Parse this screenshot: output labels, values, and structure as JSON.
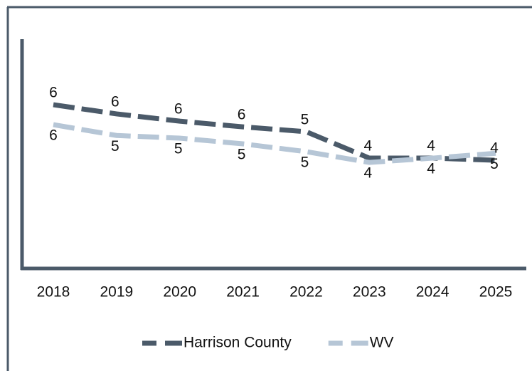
{
  "chart_data": {
    "type": "line",
    "categories": [
      "2018",
      "2019",
      "2020",
      "2021",
      "2022",
      "2023",
      "2024",
      "2025"
    ],
    "series": [
      {
        "name": "Harrison County",
        "color": "#4b5a69",
        "values": [
          6.37,
          6.03,
          5.76,
          5.55,
          5.37,
          4.39,
          4.39,
          4.31
        ],
        "value_labels": [
          "6",
          "6",
          "6",
          "6",
          "5",
          "4",
          "4",
          "4"
        ]
      },
      {
        "name": "WV",
        "color": "#b6c6d6",
        "values": [
          5.63,
          5.23,
          5.13,
          4.92,
          4.63,
          4.23,
          4.39,
          4.57
        ],
        "value_labels": [
          "6",
          "5",
          "5",
          "5",
          "5",
          "4",
          "4",
          "5"
        ]
      }
    ],
    "ylim": [
      0.3,
      8.8
    ],
    "legend": "bottom"
  }
}
